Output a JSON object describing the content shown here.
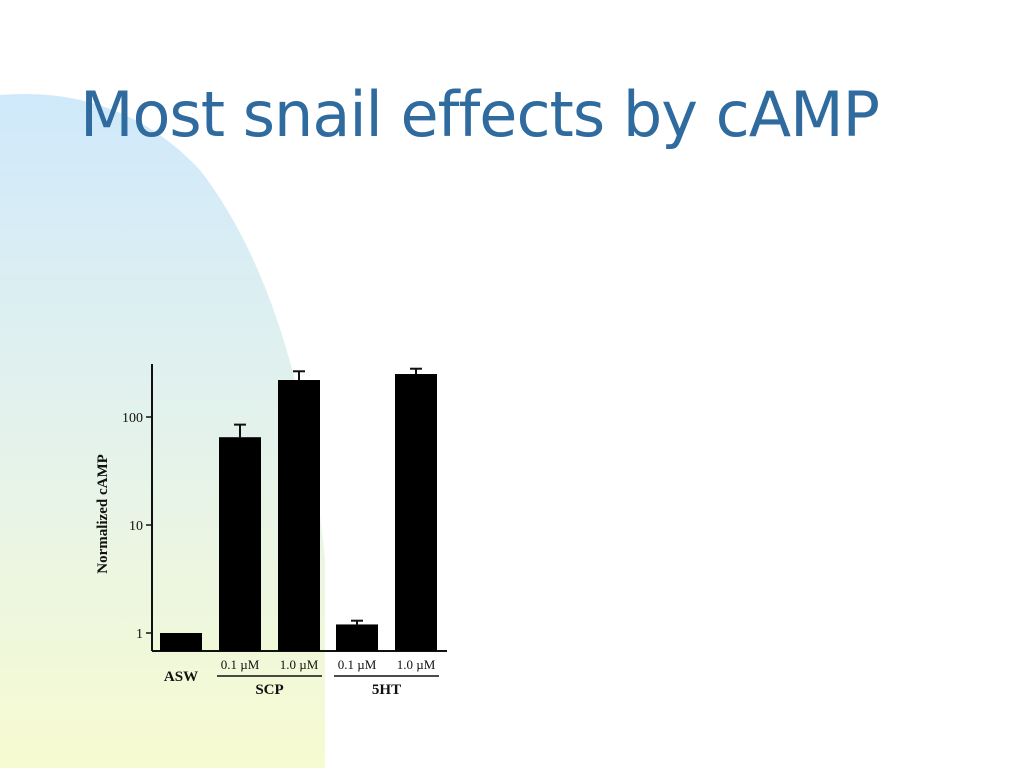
{
  "slide": {
    "title": "Most snail effects by cAMP"
  },
  "colors": {
    "title": "#2f6b9e",
    "bars": "#000000",
    "gradient_top": "#cfe9fb",
    "gradient_bottom": "#f7fbd0"
  },
  "chart_data": {
    "type": "bar",
    "ylabel": "Normalized cAMP",
    "yscale": "log",
    "ylim": [
      0.8,
      300
    ],
    "yticks": [
      1,
      10,
      100
    ],
    "ytick_labels": [
      "1",
      "10",
      "100"
    ],
    "categories": [
      "ASW",
      "0.1 µM",
      "1.0 µM",
      "0.1 µM",
      "1.0 µM"
    ],
    "values": [
      1,
      65,
      220,
      1.2,
      250
    ],
    "errors": [
      0,
      20,
      45,
      0.1,
      30
    ],
    "groups": [
      {
        "label": "SCP",
        "members": [
          1,
          2
        ]
      },
      {
        "label": "5HT",
        "members": [
          3,
          4
        ]
      }
    ]
  }
}
